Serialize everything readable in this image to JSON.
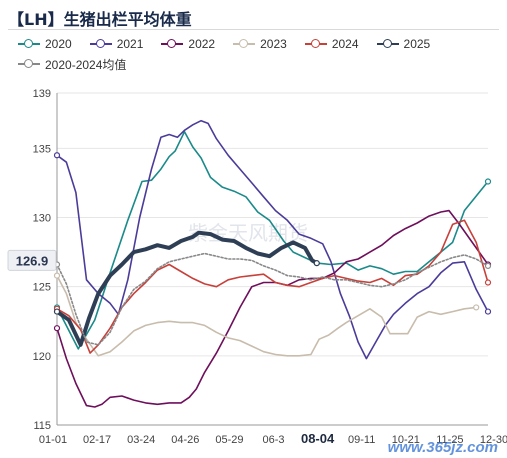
{
  "title": "【LH】生猪出栏平均体重",
  "watermark_cn": "紫金天风期货",
  "watermark_site": "www.365jz.com",
  "legend": [
    {
      "label": "2020",
      "color": "#1a8a8a"
    },
    {
      "label": "2021",
      "color": "#4b3c9a"
    },
    {
      "label": "2022",
      "color": "#6e0f5c"
    },
    {
      "label": "2023",
      "color": "#c8bcac"
    },
    {
      "label": "2024",
      "color": "#c8403a"
    },
    {
      "label": "2025",
      "color": "#2e3f55"
    },
    {
      "label": "2020-2024均值",
      "color": "#888888"
    }
  ],
  "chart_data": {
    "type": "line",
    "title": "【LH】生猪出栏平均体重",
    "xlabel": "",
    "ylabel": "",
    "ylim": [
      115,
      139
    ],
    "yticks": [
      115,
      120,
      125,
      130,
      135,
      139
    ],
    "xticks": [
      "01-01",
      "02-17",
      "03-24",
      "04-26",
      "05-29",
      "06-3",
      "08-04",
      "09-11",
      "10-21",
      "11-25",
      "12-30"
    ],
    "current_value_label": "126.9",
    "highlight_x_label": "08-04",
    "grid": "horizontal",
    "legend_position": "top",
    "series": [
      {
        "name": "2020",
        "color": "#1a8a8a",
        "width": 1.6,
        "dash": "",
        "values": [
          [
            0,
            123.5
          ],
          [
            18,
            120.5
          ],
          [
            32,
            122.6
          ],
          [
            45,
            126
          ],
          [
            60,
            129.8
          ],
          [
            72,
            132.6
          ],
          [
            80,
            132.7
          ],
          [
            88,
            133.5
          ],
          [
            95,
            134.4
          ],
          [
            100,
            134.8
          ],
          [
            108,
            136.2
          ],
          [
            115,
            135.1
          ],
          [
            122,
            134.3
          ],
          [
            130,
            132.9
          ],
          [
            140,
            132.2
          ],
          [
            150,
            131.9
          ],
          [
            160,
            131.5
          ],
          [
            170,
            130.4
          ],
          [
            180,
            129.8
          ],
          [
            192,
            128.3
          ],
          [
            200,
            127.5
          ],
          [
            210,
            127.1
          ],
          [
            220,
            126.7
          ],
          [
            232,
            126.6
          ],
          [
            245,
            126.7
          ],
          [
            255,
            126.2
          ],
          [
            265,
            126.5
          ],
          [
            275,
            126.3
          ],
          [
            285,
            125.9
          ],
          [
            295,
            126.1
          ],
          [
            305,
            126.1
          ],
          [
            315,
            126.8
          ],
          [
            325,
            127.5
          ],
          [
            335,
            128.2
          ],
          [
            345,
            130.5
          ],
          [
            365,
            132.6
          ]
        ]
      },
      {
        "name": "2021",
        "color": "#4b3c9a",
        "width": 1.6,
        "dash": "",
        "values": [
          [
            0,
            134.5
          ],
          [
            8,
            134
          ],
          [
            16,
            131.8
          ],
          [
            25,
            125.5
          ],
          [
            35,
            124.5
          ],
          [
            45,
            123.8
          ],
          [
            52,
            123
          ],
          [
            60,
            125.5
          ],
          [
            70,
            130
          ],
          [
            80,
            133.5
          ],
          [
            88,
            135.8
          ],
          [
            95,
            136
          ],
          [
            102,
            135.8
          ],
          [
            108,
            136.3
          ],
          [
            115,
            136.7
          ],
          [
            122,
            137
          ],
          [
            128,
            136.8
          ],
          [
            135,
            135.7
          ],
          [
            145,
            134.5
          ],
          [
            155,
            133.5
          ],
          [
            165,
            132.5
          ],
          [
            175,
            131.5
          ],
          [
            185,
            130.5
          ],
          [
            195,
            129.8
          ],
          [
            205,
            128.8
          ],
          [
            215,
            128.5
          ],
          [
            225,
            128.1
          ],
          [
            232,
            126.8
          ],
          [
            240,
            124.5
          ],
          [
            248,
            122.8
          ],
          [
            255,
            121
          ],
          [
            262,
            119.8
          ],
          [
            270,
            121
          ],
          [
            278,
            122.2
          ],
          [
            285,
            123
          ],
          [
            295,
            123.8
          ],
          [
            305,
            124.5
          ],
          [
            315,
            125
          ],
          [
            325,
            126
          ],
          [
            335,
            126.7
          ],
          [
            345,
            126.8
          ],
          [
            355,
            124.8
          ],
          [
            365,
            123.2
          ]
        ]
      },
      {
        "name": "2022",
        "color": "#6e0f5c",
        "width": 1.6,
        "dash": "",
        "values": [
          [
            0,
            122
          ],
          [
            8,
            119.8
          ],
          [
            16,
            118
          ],
          [
            25,
            116.4
          ],
          [
            32,
            116.3
          ],
          [
            38,
            116.5
          ],
          [
            45,
            117
          ],
          [
            55,
            117.1
          ],
          [
            65,
            116.8
          ],
          [
            75,
            116.6
          ],
          [
            85,
            116.5
          ],
          [
            95,
            116.6
          ],
          [
            105,
            116.6
          ],
          [
            112,
            117
          ],
          [
            118,
            117.6
          ],
          [
            125,
            118.8
          ],
          [
            135,
            120.2
          ],
          [
            145,
            121.8
          ],
          [
            155,
            123.5
          ],
          [
            165,
            125
          ],
          [
            175,
            125.3
          ],
          [
            185,
            125.3
          ],
          [
            195,
            125.1
          ],
          [
            205,
            125.5
          ],
          [
            215,
            125.6
          ],
          [
            225,
            125.6
          ],
          [
            235,
            126
          ],
          [
            245,
            126.8
          ],
          [
            255,
            127
          ],
          [
            265,
            127.5
          ],
          [
            275,
            128
          ],
          [
            285,
            128.7
          ],
          [
            295,
            129.2
          ],
          [
            305,
            129.6
          ],
          [
            315,
            130.1
          ],
          [
            325,
            130.4
          ],
          [
            332,
            130.5
          ],
          [
            340,
            129.6
          ],
          [
            350,
            128.4
          ],
          [
            360,
            127.2
          ],
          [
            365,
            126.6
          ]
        ]
      },
      {
        "name": "2023",
        "color": "#c8bcac",
        "width": 1.6,
        "dash": "",
        "values": [
          [
            0,
            125.8
          ],
          [
            8,
            124.5
          ],
          [
            16,
            122.4
          ],
          [
            25,
            121.2
          ],
          [
            35,
            120
          ],
          [
            45,
            120.3
          ],
          [
            55,
            121
          ],
          [
            65,
            121.8
          ],
          [
            75,
            122.2
          ],
          [
            85,
            122.4
          ],
          [
            95,
            122.5
          ],
          [
            105,
            122.4
          ],
          [
            115,
            122.4
          ],
          [
            125,
            122.2
          ],
          [
            135,
            121.7
          ],
          [
            145,
            121.3
          ],
          [
            155,
            121.1
          ],
          [
            165,
            120.7
          ],
          [
            175,
            120.3
          ],
          [
            185,
            120.1
          ],
          [
            195,
            120
          ],
          [
            205,
            120
          ],
          [
            215,
            120.1
          ],
          [
            222,
            121.2
          ],
          [
            230,
            121.5
          ],
          [
            238,
            122
          ],
          [
            245,
            122.4
          ],
          [
            255,
            122.9
          ],
          [
            265,
            123.4
          ],
          [
            275,
            122.8
          ],
          [
            282,
            121.6
          ],
          [
            290,
            121.6
          ],
          [
            297,
            121.6
          ],
          [
            305,
            122.8
          ],
          [
            315,
            123.2
          ],
          [
            325,
            123
          ],
          [
            335,
            123.2
          ],
          [
            345,
            123.4
          ],
          [
            355,
            123.5
          ]
        ]
      },
      {
        "name": "2024",
        "color": "#c8403a",
        "width": 1.6,
        "dash": "",
        "values": [
          [
            0,
            123.4
          ],
          [
            10,
            122.9
          ],
          [
            20,
            121.9
          ],
          [
            28,
            120.2
          ],
          [
            35,
            120.8
          ],
          [
            45,
            122
          ],
          [
            55,
            123.5
          ],
          [
            65,
            124.5
          ],
          [
            75,
            125.3
          ],
          [
            85,
            126.2
          ],
          [
            95,
            126.6
          ],
          [
            105,
            126.1
          ],
          [
            115,
            125.6
          ],
          [
            125,
            125.2
          ],
          [
            135,
            125
          ],
          [
            145,
            125.5
          ],
          [
            155,
            125.7
          ],
          [
            165,
            125.8
          ],
          [
            175,
            125.9
          ],
          [
            185,
            125.3
          ],
          [
            195,
            125.1
          ],
          [
            205,
            125
          ],
          [
            215,
            125.3
          ],
          [
            225,
            125.6
          ],
          [
            235,
            125.8
          ],
          [
            245,
            125.6
          ],
          [
            255,
            125.4
          ],
          [
            265,
            125.3
          ],
          [
            275,
            125.6
          ],
          [
            285,
            125.1
          ],
          [
            295,
            125.8
          ],
          [
            305,
            125.9
          ],
          [
            315,
            126.5
          ],
          [
            325,
            127.5
          ],
          [
            335,
            129.5
          ],
          [
            345,
            129.8
          ],
          [
            355,
            128.2
          ],
          [
            365,
            125.3
          ]
        ]
      },
      {
        "name": "2025",
        "color": "#2e3f55",
        "width": 4,
        "dash": "",
        "values": [
          [
            0,
            123.2
          ],
          [
            10,
            122.6
          ],
          [
            20,
            120.8
          ],
          [
            27,
            122.7
          ],
          [
            35,
            124.5
          ],
          [
            45,
            125.8
          ],
          [
            55,
            126.6
          ],
          [
            65,
            127.5
          ],
          [
            75,
            127.7
          ],
          [
            85,
            128
          ],
          [
            95,
            127.8
          ],
          [
            105,
            128.3
          ],
          [
            115,
            128.6
          ],
          [
            120,
            128.9
          ],
          [
            130,
            128.8
          ],
          [
            140,
            128.4
          ],
          [
            150,
            128.3
          ],
          [
            160,
            127.8
          ],
          [
            170,
            127.4
          ],
          [
            180,
            127.2
          ],
          [
            190,
            127.8
          ],
          [
            200,
            128.2
          ],
          [
            210,
            127.8
          ],
          [
            216,
            126.9
          ],
          [
            220,
            126.7
          ]
        ]
      },
      {
        "name": "2020-2024均值",
        "color": "#888888",
        "width": 1.6,
        "dash": "2 2",
        "values": [
          [
            0,
            126.6
          ],
          [
            8,
            125.2
          ],
          [
            16,
            123
          ],
          [
            25,
            121
          ],
          [
            35,
            120.8
          ],
          [
            45,
            121.7
          ],
          [
            55,
            123.5
          ],
          [
            65,
            124.8
          ],
          [
            75,
            125.4
          ],
          [
            85,
            126.3
          ],
          [
            95,
            126.8
          ],
          [
            105,
            127
          ],
          [
            115,
            127.2
          ],
          [
            125,
            127.4
          ],
          [
            135,
            127.2
          ],
          [
            145,
            127
          ],
          [
            155,
            127
          ],
          [
            165,
            126.9
          ],
          [
            175,
            126.5
          ],
          [
            185,
            126.2
          ],
          [
            195,
            125.8
          ],
          [
            205,
            125.7
          ],
          [
            215,
            125.5
          ],
          [
            225,
            125.7
          ],
          [
            235,
            125.5
          ],
          [
            245,
            125.5
          ],
          [
            255,
            125.3
          ],
          [
            265,
            125.1
          ],
          [
            275,
            125
          ],
          [
            285,
            125.2
          ],
          [
            295,
            125.5
          ],
          [
            305,
            126
          ],
          [
            315,
            126.4
          ],
          [
            325,
            126.8
          ],
          [
            335,
            127.1
          ],
          [
            345,
            127.3
          ],
          [
            355,
            127
          ],
          [
            365,
            126.5
          ]
        ]
      }
    ]
  }
}
